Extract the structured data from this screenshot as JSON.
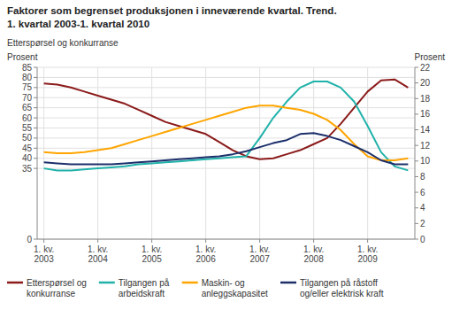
{
  "chart_data": {
    "type": "line",
    "title": "Faktorer som begrenset produksjonen i inneværende kvartal. Trend.",
    "subtitle": "1. kvartal 2003-1. kvartal 2010",
    "y_label": "Prosent",
    "y2_label": "Prosent",
    "annotations": [
      "Etterspørsel og konkurranse"
    ],
    "categories": [
      "1. kv.\n2003",
      null,
      null,
      null,
      "1. kv.\n2004",
      null,
      null,
      null,
      "1. kv.\n2005",
      null,
      null,
      null,
      "1. kv.\n2006",
      null,
      null,
      null,
      "1. kv.\n2007",
      null,
      null,
      null,
      "1. kv.\n2008",
      null,
      null,
      null,
      "1. kv.\n2009",
      null,
      null,
      null
    ],
    "series": [
      {
        "name": "Etterspørsel og\nkonkurranse",
        "color": "#8B1A1A",
        "values": [
          77,
          76.5,
          75,
          73,
          71,
          69,
          67,
          64,
          61,
          58,
          56,
          54,
          52,
          48,
          44,
          41,
          39.5,
          40,
          42,
          44,
          47,
          50,
          57,
          65,
          73,
          78.5,
          79,
          75
        ]
      },
      {
        "name": "Tilgangen på\narbeidskraft",
        "color": "#20B2AA",
        "values": [
          35,
          34,
          34,
          34.5,
          35,
          35.5,
          36,
          37,
          37.5,
          38,
          38.5,
          39,
          39.5,
          40,
          40.5,
          41,
          50,
          60,
          68,
          75,
          78,
          78,
          75,
          68,
          56,
          43,
          36,
          34
        ]
      },
      {
        "name": "Maskin- og\nanleggskapasitet",
        "color": "#FFA500",
        "values": [
          43,
          42.5,
          42.5,
          43,
          44,
          45,
          47,
          49,
          51,
          53,
          55,
          57,
          59,
          61,
          63,
          65,
          66,
          66,
          65,
          64,
          62,
          59,
          54,
          47,
          41,
          39,
          39,
          40
        ]
      },
      {
        "name": "Tilgangen på råstoff\nog/eller elektrisk kraft",
        "color": "#1C2F6B",
        "values": [
          38,
          37.5,
          37,
          37,
          37,
          37,
          37.5,
          38,
          38.5,
          39,
          39.5,
          40,
          40.5,
          41,
          42,
          43.5,
          45.5,
          47.5,
          49,
          52,
          52.5,
          51,
          49,
          46,
          43,
          39,
          37,
          37
        ]
      }
    ],
    "ylim": [
      0,
      85
    ],
    "yticks": [
      0,
      35,
      40,
      45,
      50,
      55,
      60,
      65,
      70,
      75,
      80,
      85
    ],
    "y2lim": [
      0,
      22
    ],
    "y2ticks": [
      0,
      2,
      4,
      6,
      8,
      10,
      12,
      14,
      16,
      18,
      20,
      22
    ],
    "grid": true,
    "legend": "bottom"
  }
}
